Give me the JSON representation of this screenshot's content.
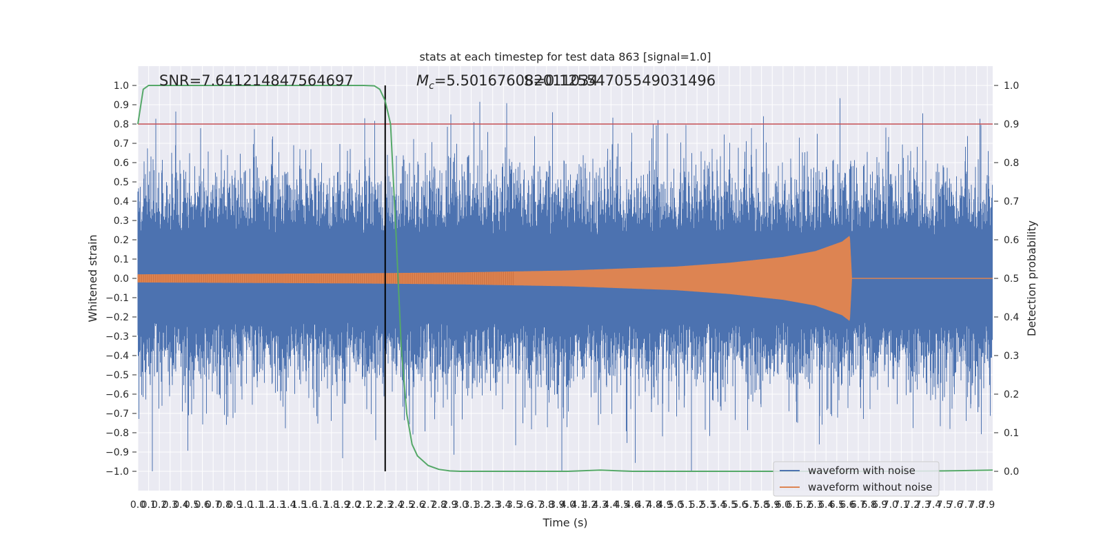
{
  "chart_data": {
    "type": "line",
    "title": "stats at each timestep for test data 863 [signal=1.0]",
    "xlabel": "Time (s)",
    "ylabel": "Whitened strain",
    "y2label": "Detection probability",
    "xlim": [
      0.0,
      7.95
    ],
    "ylim": [
      -1.1,
      1.1
    ],
    "y2lim": [
      -0.05,
      1.05
    ],
    "x_ticks": [
      0.0,
      0.1,
      0.2,
      0.3,
      0.4,
      0.5,
      0.6,
      0.7,
      0.8,
      0.9,
      1.0,
      1.1,
      1.2,
      1.3,
      1.4,
      1.5,
      1.6,
      1.7,
      1.8,
      1.9,
      2.0,
      2.1,
      2.2,
      2.3,
      2.4,
      2.5,
      2.6,
      2.7,
      2.8,
      2.9,
      3.0,
      3.1,
      3.2,
      3.3,
      3.4,
      3.5,
      3.6,
      3.7,
      3.8,
      3.9,
      4.0,
      4.1,
      4.2,
      4.3,
      4.4,
      4.5,
      4.6,
      4.7,
      4.8,
      4.9,
      5.0,
      5.1,
      5.2,
      5.3,
      5.4,
      5.5,
      5.6,
      5.7,
      5.8,
      5.9,
      6.0,
      6.1,
      6.2,
      6.3,
      6.4,
      6.5,
      6.6,
      6.7,
      6.8,
      6.9,
      7.0,
      7.1,
      7.2,
      7.3,
      7.4,
      7.5,
      7.6,
      7.7,
      7.8,
      7.9
    ],
    "y_ticks": [
      -1.0,
      -0.9,
      -0.8,
      -0.7,
      -0.6,
      -0.5,
      -0.4,
      -0.3,
      -0.2,
      -0.1,
      0.0,
      0.1,
      0.2,
      0.3,
      0.4,
      0.5,
      0.6,
      0.7,
      0.8,
      0.9,
      1.0
    ],
    "y2_ticks": [
      0.0,
      0.1,
      0.2,
      0.3,
      0.4,
      0.5,
      0.6,
      0.7,
      0.8,
      0.9,
      1.0
    ],
    "grid": true,
    "legend_position": "lower-right",
    "annotations": {
      "snr": "SNR=7.641214847564697",
      "mc_symbol": "M",
      "mc_subscript": "c",
      "mc_value": "=5.501676082011034",
      "overlap": "S=0.12554705549031496"
    },
    "threshold_line": {
      "y": 0.8,
      "color": "#c44e52"
    },
    "marker_line": {
      "x": 2.3,
      "color": "#000000"
    },
    "series": [
      {
        "name": "waveform with noise",
        "color": "#4c72b0",
        "description_points": "dense random noise, amplitude mostly within ±0.6 with spikes up to ±1.0"
      },
      {
        "name": "waveform without noise",
        "color": "#dd8452",
        "envelope": {
          "t": [
            0.0,
            2.0,
            3.0,
            4.0,
            5.0,
            5.5,
            6.0,
            6.3,
            6.55,
            6.62,
            6.64
          ],
          "amp": [
            0.02,
            0.025,
            0.03,
            0.04,
            0.06,
            0.08,
            0.11,
            0.14,
            0.19,
            0.22,
            0.0
          ]
        }
      },
      {
        "name": "detection probability",
        "color": "#55a868",
        "axis": "y2",
        "t": [
          0.0,
          0.05,
          0.1,
          0.2,
          0.5,
          1.0,
          1.5,
          2.0,
          2.1,
          2.2,
          2.25,
          2.3,
          2.35,
          2.4,
          2.45,
          2.5,
          2.55,
          2.6,
          2.7,
          2.8,
          2.9,
          3.0,
          3.5,
          4.0,
          4.3,
          4.6,
          5.0,
          5.5,
          6.0,
          6.5,
          7.0,
          7.5,
          7.95
        ],
        "p": [
          0.9,
          0.99,
          1.0,
          1.0,
          1.0,
          1.0,
          1.0,
          1.0,
          1.0,
          0.999,
          0.99,
          0.96,
          0.9,
          0.62,
          0.32,
          0.15,
          0.07,
          0.04,
          0.015,
          0.005,
          0.001,
          0.0,
          0.0,
          0.0,
          0.003,
          0.0,
          0.0,
          0.0,
          0.0,
          0.0,
          0.0,
          0.001,
          0.003
        ]
      }
    ],
    "legend": [
      "waveform with noise",
      "waveform without noise"
    ]
  }
}
